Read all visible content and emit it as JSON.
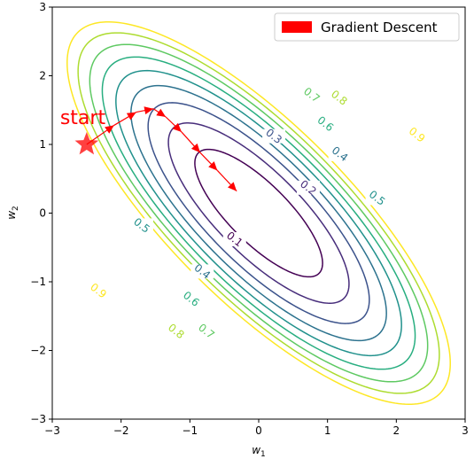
{
  "chart_data": {
    "type": "contour",
    "xlabel_main": "w",
    "xlabel_sub": "1",
    "ylabel_main": "w",
    "ylabel_sub": "2",
    "xlim": [
      -3,
      3
    ],
    "ylim": [
      -3,
      3
    ],
    "xticks": [
      -3,
      -2,
      -1,
      0,
      1,
      2,
      3
    ],
    "yticks": [
      -3,
      -2,
      -1,
      0,
      1,
      2,
      3
    ],
    "xtick_labels": [
      "−3",
      "−2",
      "−1",
      "0",
      "1",
      "2",
      "3"
    ],
    "ytick_labels": [
      "−3",
      "−2",
      "−1",
      "0",
      "1",
      "2",
      "3"
    ],
    "contour_levels": [
      0.1,
      0.2,
      0.3,
      0.4,
      0.5,
      0.6,
      0.7,
      0.8,
      0.9
    ],
    "contour_colors": [
      "#440154",
      "#472d7b",
      "#3b528b",
      "#2c728e",
      "#21918c",
      "#28ae80",
      "#5ec962",
      "#addc30",
      "#fde725"
    ],
    "contour_labels": [
      {
        "text": "0.1",
        "x": -0.35,
        "y": -0.38,
        "level": 0.1
      },
      {
        "text": "0.2",
        "x": 0.72,
        "y": 0.37,
        "level": 0.2
      },
      {
        "text": "0.3",
        "x": 0.22,
        "y": 1.12,
        "level": 0.3
      },
      {
        "text": "0.4",
        "x": 1.18,
        "y": 0.86,
        "level": 0.4
      },
      {
        "text": "0.5",
        "x": 1.72,
        "y": 0.22,
        "level": 0.5
      },
      {
        "text": "0.6",
        "x": 0.97,
        "y": 1.3,
        "level": 0.6
      },
      {
        "text": "0.7",
        "x": 0.77,
        "y": 1.72,
        "level": 0.7
      },
      {
        "text": "0.8",
        "x": 1.17,
        "y": 1.68,
        "level": 0.8
      },
      {
        "text": "0.9",
        "x": 2.3,
        "y": 1.14,
        "level": 0.9
      },
      {
        "text": "0.5",
        "x": -1.7,
        "y": -0.18,
        "level": 0.5
      },
      {
        "text": "0.4",
        "x": -0.82,
        "y": -0.85,
        "level": 0.4
      },
      {
        "text": "0.6",
        "x": -0.98,
        "y": -1.25,
        "level": 0.6
      },
      {
        "text": "0.7",
        "x": -0.76,
        "y": -1.72,
        "level": 0.7
      },
      {
        "text": "0.8",
        "x": -1.2,
        "y": -1.72,
        "level": 0.8
      },
      {
        "text": "0.9",
        "x": -2.33,
        "y": -1.13,
        "level": 0.9
      }
    ],
    "gradient_descent": {
      "name": "Gradient Descent",
      "color": "#ff0000",
      "points": [
        [
          -2.5,
          1.0
        ],
        [
          -2.1,
          1.28
        ],
        [
          -1.78,
          1.47
        ],
        [
          -1.53,
          1.52
        ],
        [
          -1.35,
          1.4
        ],
        [
          -1.12,
          1.18
        ],
        [
          -0.85,
          0.88
        ],
        [
          -0.6,
          0.62
        ],
        [
          -0.32,
          0.32
        ]
      ]
    },
    "start_marker": {
      "text": "start",
      "x": -2.5,
      "y": 1.0,
      "color": "#ff0000"
    },
    "legend": {
      "label": "Gradient Descent",
      "position": "upper right"
    }
  }
}
